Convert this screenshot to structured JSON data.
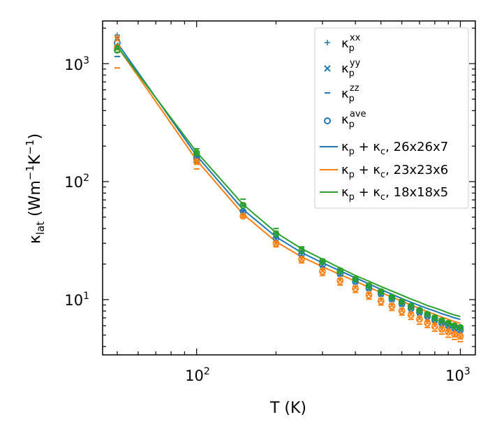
{
  "chart_data": {
    "type": "scatter",
    "xscale": "log",
    "yscale": "log",
    "xlim": [
      44,
      1140
    ],
    "ylim": [
      3.4,
      2300
    ],
    "xlabel": {
      "main": "T (K)"
    },
    "ylabel": {
      "kappa": "κ",
      "sub": "lat",
      "open": " (Wm",
      "exp1": "−1",
      "mid": "K",
      "exp2": "−1",
      "close": ")"
    },
    "xticks": [
      {
        "base": "10",
        "exp": "2"
      },
      {
        "base": "10",
        "exp": "3"
      }
    ],
    "yticks": [
      {
        "base": "10",
        "exp": "1"
      },
      {
        "base": "10",
        "exp": "2"
      },
      {
        "base": "10",
        "exp": "3"
      }
    ],
    "colors": {
      "blue": "#1f77b4",
      "orange": "#ff7f0e",
      "green": "#2ca02c"
    },
    "x": [
      50,
      100,
      150,
      200,
      250,
      300,
      350,
      400,
      450,
      500,
      550,
      600,
      650,
      700,
      750,
      800,
      850,
      900,
      950,
      1000
    ],
    "series": [
      {
        "name": "26x26x7",
        "color": "blue",
        "xx": [
          1750,
          165,
          57,
          33.5,
          24.5,
          20.0,
          16.8,
          14.4,
          12.7,
          11.3,
          10.2,
          9.3,
          8.5,
          7.8,
          7.3,
          6.8,
          6.4,
          6.1,
          5.8,
          5.6
        ],
        "yy": [
          1650,
          160,
          55,
          32.5,
          24.0,
          19.5,
          16.4,
          14.1,
          12.4,
          11.1,
          10.0,
          9.1,
          8.4,
          7.7,
          7.2,
          6.7,
          6.3,
          6.0,
          5.7,
          5.5
        ],
        "zz": [
          1150,
          145,
          62,
          36.0,
          26.0,
          21.0,
          17.5,
          15.0,
          13.2,
          11.8,
          10.6,
          9.7,
          8.9,
          8.2,
          7.6,
          7.1,
          6.7,
          6.3,
          6.0,
          5.8
        ],
        "ave": [
          1500,
          158,
          56,
          33.0,
          24.3,
          19.8,
          16.6,
          14.2,
          12.5,
          11.2,
          10.1,
          9.2,
          8.4,
          7.8,
          7.2,
          6.7,
          6.3,
          6.0,
          5.7,
          5.5
        ],
        "line": [
          1500,
          166,
          58,
          34.0,
          25.0,
          20.5,
          17.5,
          15.3,
          13.6,
          12.2,
          11.1,
          10.2,
          9.5,
          8.9,
          8.4,
          8.0,
          7.6,
          7.3,
          7.0,
          6.8
        ]
      },
      {
        "name": "23x23x6",
        "color": "orange",
        "xx": [
          1700,
          150,
          52,
          30.5,
          22.5,
          18.0,
          15.0,
          13.0,
          11.4,
          10.2,
          9.2,
          8.4,
          7.8,
          7.2,
          6.7,
          6.3,
          5.9,
          5.6,
          5.3,
          5.1
        ],
        "yy": [
          1600,
          145,
          51,
          30.0,
          22.0,
          17.5,
          14.6,
          12.6,
          11.1,
          9.9,
          8.9,
          8.1,
          7.5,
          6.9,
          6.4,
          6.0,
          5.6,
          5.3,
          5.0,
          4.8
        ],
        "zz": [
          920,
          128,
          50,
          28.0,
          20.5,
          16.0,
          13.3,
          11.5,
          10.1,
          9.0,
          8.1,
          7.4,
          6.8,
          6.2,
          5.8,
          5.4,
          5.1,
          4.8,
          4.6,
          4.4
        ],
        "ave": [
          1380,
          148,
          51,
          30.0,
          22.0,
          17.3,
          14.4,
          12.4,
          10.9,
          9.7,
          8.8,
          8.0,
          7.4,
          6.8,
          6.3,
          5.9,
          5.6,
          5.3,
          5.1,
          4.9
        ],
        "line": [
          1400,
          152,
          53,
          31.0,
          23.0,
          19.0,
          16.3,
          14.3,
          12.7,
          11.5,
          10.5,
          9.7,
          9.0,
          8.4,
          7.9,
          7.5,
          7.1,
          6.8,
          6.5,
          6.3
        ]
      },
      {
        "name": "18x18x5",
        "color": "green",
        "xx": [
          1400,
          178,
          64,
          37.0,
          27.0,
          21.5,
          18.0,
          15.3,
          13.4,
          11.9,
          10.7,
          9.8,
          9.0,
          8.3,
          7.7,
          7.2,
          6.8,
          6.4,
          6.1,
          5.9
        ],
        "yy": [
          1350,
          175,
          63,
          36.5,
          26.5,
          21.0,
          17.7,
          15.0,
          13.1,
          11.7,
          10.5,
          9.6,
          8.8,
          8.1,
          7.5,
          7.0,
          6.6,
          6.3,
          6.0,
          5.8
        ],
        "zz": [
          1250,
          190,
          71,
          40.0,
          28.0,
          22.0,
          18.2,
          15.5,
          13.6,
          12.0,
          10.8,
          9.9,
          9.1,
          8.4,
          7.8,
          7.3,
          6.9,
          6.5,
          6.2,
          6.0
        ],
        "ave": [
          1300,
          175,
          63,
          36.0,
          26.0,
          21.0,
          17.5,
          14.9,
          13.1,
          11.7,
          10.5,
          9.6,
          8.8,
          8.1,
          7.5,
          7.0,
          6.6,
          6.3,
          6.0,
          5.8
        ],
        "line": [
          1400,
          178,
          64,
          37.0,
          27.0,
          22.0,
          18.5,
          16.0,
          14.3,
          12.9,
          11.8,
          10.9,
          10.1,
          9.5,
          8.9,
          8.5,
          8.1,
          7.7,
          7.4,
          7.2
        ]
      }
    ],
    "legend": {
      "position": "top-right",
      "entries": [
        {
          "marker": "plus",
          "symbol": "κ",
          "sub": "p",
          "sup": "xx"
        },
        {
          "marker": "x",
          "symbol": "κ",
          "sub": "p",
          "sup": "yy"
        },
        {
          "marker": "dash",
          "symbol": "κ",
          "sub": "p",
          "sup": "zz"
        },
        {
          "marker": "circle",
          "symbol": "κ",
          "sub": "p",
          "sup": "ave"
        },
        {
          "marker": "line",
          "color": "blue",
          "k1": "κ",
          "s1": "p",
          "plus": " + ",
          "k2": "κ",
          "s2": "c",
          "tail": ", 26x26x7"
        },
        {
          "marker": "line",
          "color": "orange",
          "k1": "κ",
          "s1": "p",
          "plus": " + ",
          "k2": "κ",
          "s2": "c",
          "tail": ", 23x23x6"
        },
        {
          "marker": "line",
          "color": "green",
          "k1": "κ",
          "s1": "p",
          "plus": " + ",
          "k2": "κ",
          "s2": "c",
          "tail": ", 18x18x5"
        }
      ]
    }
  }
}
